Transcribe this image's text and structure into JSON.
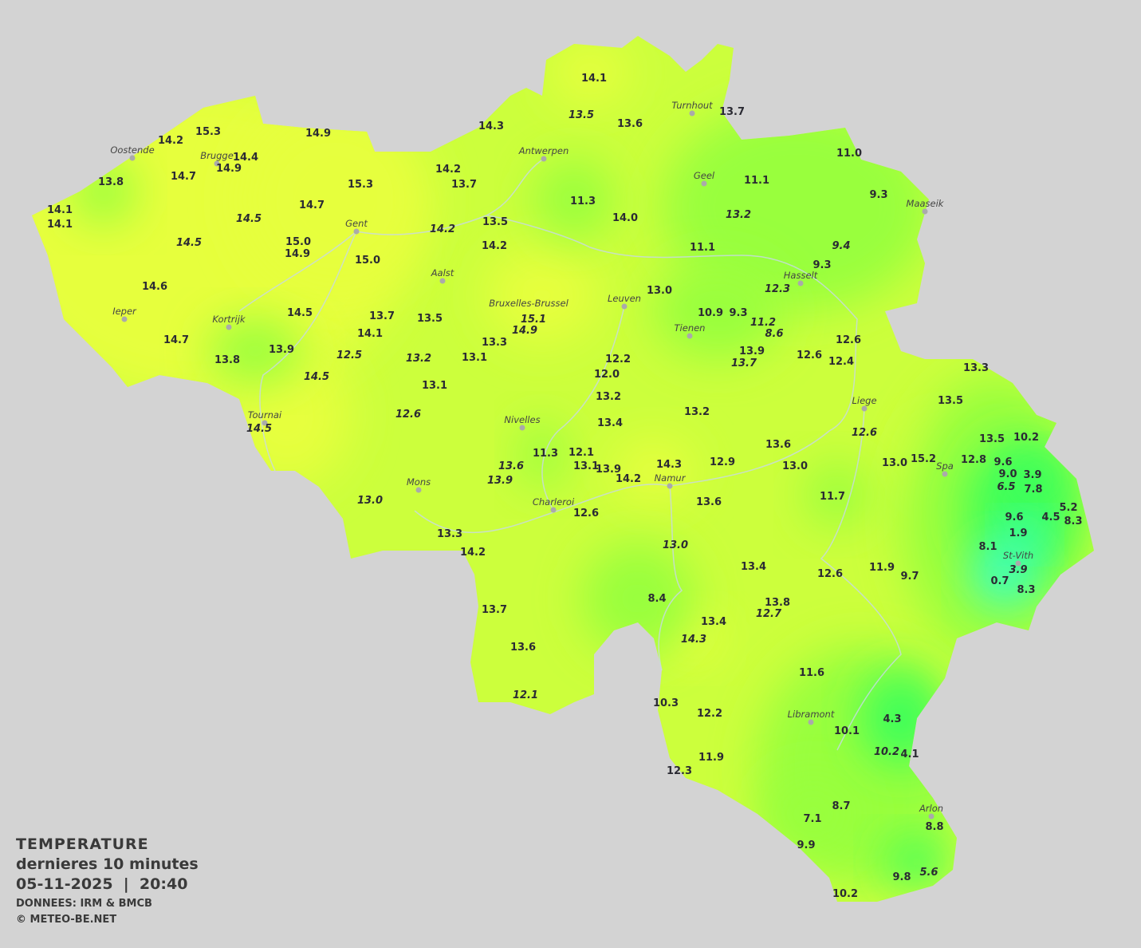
{
  "legend": {
    "title": "TEMPERATURE",
    "subtitle": "dernieres 10 minutes",
    "datetime": "05-11-2025  |  20:40",
    "source": "DONNEES: IRM & BMCB",
    "copyright": "© METEO-BE.NET"
  },
  "colors": {
    "background": "#d3d3d3",
    "warm": "#e6ff3c",
    "mild": "#ccff3c",
    "cool": "#99ff3c",
    "cold": "#3cff5a",
    "coldest": "#3cffc8",
    "text": "#2b2b33"
  },
  "unit": "°C",
  "cities": [
    "Oostende",
    "Brugge",
    "Gent",
    "Ieper",
    "Kortrijk",
    "Tournai",
    "Aalst",
    "Bruxelles-Brussel",
    "Antwerpen",
    "Turnhout",
    "Geel",
    "Maaseik",
    "Hasselt",
    "Leuven",
    "Tienen",
    "Liege",
    "Nivelles",
    "Mons",
    "Charleroi",
    "Namur",
    "Spa",
    "St-Vith",
    "Libramont",
    "Arlon"
  ],
  "stations": [
    {
      "v": "15.3"
    },
    {
      "v": "14.2"
    },
    {
      "v": "14.9"
    },
    {
      "v": "14.4"
    },
    {
      "v": "14.9"
    },
    {
      "v": "14.7"
    },
    {
      "v": "13.8"
    },
    {
      "v": "15.3"
    },
    {
      "v": "14.1"
    },
    {
      "v": "14.1"
    },
    {
      "v": "14.5",
      "i": true
    },
    {
      "v": "14.7"
    },
    {
      "v": "14.5",
      "i": true
    },
    {
      "v": "15.0"
    },
    {
      "v": "14.9"
    },
    {
      "v": "15.0"
    },
    {
      "v": "14.6"
    },
    {
      "v": "14.5"
    },
    {
      "v": "14.7"
    },
    {
      "v": "13.8"
    },
    {
      "v": "13.9"
    },
    {
      "v": "14.5",
      "i": true
    },
    {
      "v": "14.5",
      "i": true
    },
    {
      "v": "14.3"
    },
    {
      "v": "14.2"
    },
    {
      "v": "13.7"
    },
    {
      "v": "13.5"
    },
    {
      "v": "14.2",
      "i": true
    },
    {
      "v": "14.2"
    },
    {
      "v": "13.7"
    },
    {
      "v": "14.1"
    },
    {
      "v": "13.5"
    },
    {
      "v": "15.1",
      "i": true
    },
    {
      "v": "14.9",
      "i": true
    },
    {
      "v": "13.3"
    },
    {
      "v": "12.5",
      "i": true
    },
    {
      "v": "13.2",
      "i": true
    },
    {
      "v": "13.1"
    },
    {
      "v": "13.1"
    },
    {
      "v": "12.6",
      "i": true
    },
    {
      "v": "12.2"
    },
    {
      "v": "12.0"
    },
    {
      "v": "13.2"
    },
    {
      "v": "13.4"
    },
    {
      "v": "11.3"
    },
    {
      "v": "12.1"
    },
    {
      "v": "13.1"
    },
    {
      "v": "13.9"
    },
    {
      "v": "13.6",
      "i": true
    },
    {
      "v": "13.9",
      "i": true
    },
    {
      "v": "14.3"
    },
    {
      "v": "14.2"
    },
    {
      "v": "13.0",
      "i": true
    },
    {
      "v": "12.6"
    },
    {
      "v": "13.3"
    },
    {
      "v": "14.2"
    },
    {
      "v": "13.7"
    },
    {
      "v": "13.6"
    },
    {
      "v": "12.1",
      "i": true
    },
    {
      "v": "14.1"
    },
    {
      "v": "13.5",
      "i": true
    },
    {
      "v": "13.6"
    },
    {
      "v": "13.7"
    },
    {
      "v": "11.0"
    },
    {
      "v": "11.3"
    },
    {
      "v": "14.0"
    },
    {
      "v": "11.1"
    },
    {
      "v": "9.3"
    },
    {
      "v": "13.2",
      "i": true
    },
    {
      "v": "11.1"
    },
    {
      "v": "9.4",
      "i": true
    },
    {
      "v": "9.3"
    },
    {
      "v": "12.3",
      "i": true
    },
    {
      "v": "13.0"
    },
    {
      "v": "10.9"
    },
    {
      "v": "9.3"
    },
    {
      "v": "11.2",
      "i": true
    },
    {
      "v": "8.6",
      "i": true
    },
    {
      "v": "13.9"
    },
    {
      "v": "13.7",
      "i": true
    },
    {
      "v": "12.6"
    },
    {
      "v": "12.6"
    },
    {
      "v": "12.4"
    },
    {
      "v": "13.2"
    },
    {
      "v": "13.3"
    },
    {
      "v": "13.5"
    },
    {
      "v": "12.6",
      "i": true
    },
    {
      "v": "13.6"
    },
    {
      "v": "13.0"
    },
    {
      "v": "12.9"
    },
    {
      "v": "13.5"
    },
    {
      "v": "10.2"
    },
    {
      "v": "13.0"
    },
    {
      "v": "15.2"
    },
    {
      "v": "12.8"
    },
    {
      "v": "9.6"
    },
    {
      "v": "9.0"
    },
    {
      "v": "3.9"
    },
    {
      "v": "6.5",
      "i": true
    },
    {
      "v": "7.8"
    },
    {
      "v": "11.7"
    },
    {
      "v": "13.6"
    },
    {
      "v": "9.6"
    },
    {
      "v": "1.9"
    },
    {
      "v": "4.5"
    },
    {
      "v": "5.2"
    },
    {
      "v": "8.3"
    },
    {
      "v": "8.1"
    },
    {
      "v": "3.9",
      "i": true
    },
    {
      "v": "0.7"
    },
    {
      "v": "8.3"
    },
    {
      "v": "13.0",
      "i": true
    },
    {
      "v": "13.4"
    },
    {
      "v": "12.6"
    },
    {
      "v": "11.9"
    },
    {
      "v": "9.7"
    },
    {
      "v": "8.4"
    },
    {
      "v": "13.8"
    },
    {
      "v": "12.7",
      "i": true
    },
    {
      "v": "13.4"
    },
    {
      "v": "14.3",
      "i": true
    },
    {
      "v": "11.6"
    },
    {
      "v": "10.3"
    },
    {
      "v": "12.2"
    },
    {
      "v": "4.3"
    },
    {
      "v": "10.1"
    },
    {
      "v": "10.2",
      "i": true
    },
    {
      "v": "4.1"
    },
    {
      "v": "11.9"
    },
    {
      "v": "12.3"
    },
    {
      "v": "8.7"
    },
    {
      "v": "7.1"
    },
    {
      "v": "8.8"
    },
    {
      "v": "9.9"
    },
    {
      "v": "9.8"
    },
    {
      "v": "5.6",
      "i": true
    },
    {
      "v": "10.2"
    }
  ]
}
